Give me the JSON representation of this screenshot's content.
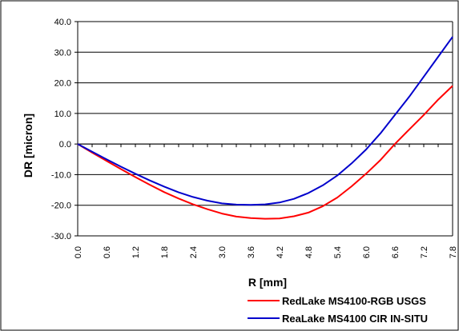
{
  "chart_data": {
    "type": "line",
    "title": "",
    "xlabel": "R [mm]",
    "ylabel": "DR [micron]",
    "xlim": [
      0.0,
      7.8
    ],
    "ylim": [
      -30.0,
      40.0
    ],
    "x_ticks": [
      "0.0",
      "0.6",
      "1.2",
      "1.8",
      "2.4",
      "3.0",
      "3.6",
      "4.2",
      "4.8",
      "5.4",
      "6.0",
      "6.6",
      "7.2",
      "7.8"
    ],
    "y_ticks": [
      "40.0",
      "30.0",
      "20.0",
      "10.0",
      "0.0",
      "-10.0",
      "-20.0",
      "-30.0"
    ],
    "grid": "horizontal",
    "legend_position": "bottom-right",
    "series": [
      {
        "name": "RedLake MS4100-RGB USGS",
        "color": "#ff0000",
        "x": [
          0.0,
          0.3,
          0.6,
          0.9,
          1.2,
          1.5,
          1.8,
          2.1,
          2.4,
          2.7,
          3.0,
          3.3,
          3.6,
          3.9,
          4.2,
          4.5,
          4.8,
          5.1,
          5.4,
          5.7,
          6.0,
          6.3,
          6.6,
          6.9,
          7.2,
          7.5,
          7.8
        ],
        "y": [
          0.0,
          -2.8,
          -5.5,
          -8.2,
          -10.8,
          -13.3,
          -15.7,
          -17.8,
          -19.7,
          -21.3,
          -22.7,
          -23.7,
          -24.2,
          -24.4,
          -24.3,
          -23.6,
          -22.4,
          -20.3,
          -17.5,
          -13.8,
          -9.7,
          -5.2,
          0.0,
          4.8,
          9.5,
          14.5,
          19.0
        ]
      },
      {
        "name": "ReaLake MS4100 CIR IN-SITU",
        "color": "#0000cc",
        "x": [
          0.0,
          0.3,
          0.6,
          0.9,
          1.2,
          1.5,
          1.8,
          2.1,
          2.4,
          2.7,
          3.0,
          3.3,
          3.6,
          3.9,
          4.2,
          4.5,
          4.8,
          5.1,
          5.4,
          5.7,
          6.0,
          6.3,
          6.6,
          6.9,
          7.2,
          7.5,
          7.8
        ],
        "y": [
          0.0,
          -2.5,
          -5.0,
          -7.4,
          -9.7,
          -11.9,
          -13.9,
          -15.8,
          -17.3,
          -18.5,
          -19.4,
          -19.8,
          -19.9,
          -19.7,
          -19.1,
          -17.9,
          -16.0,
          -13.5,
          -10.3,
          -6.3,
          -1.8,
          3.5,
          9.5,
          15.5,
          22.0,
          28.5,
          35.0
        ]
      }
    ]
  }
}
